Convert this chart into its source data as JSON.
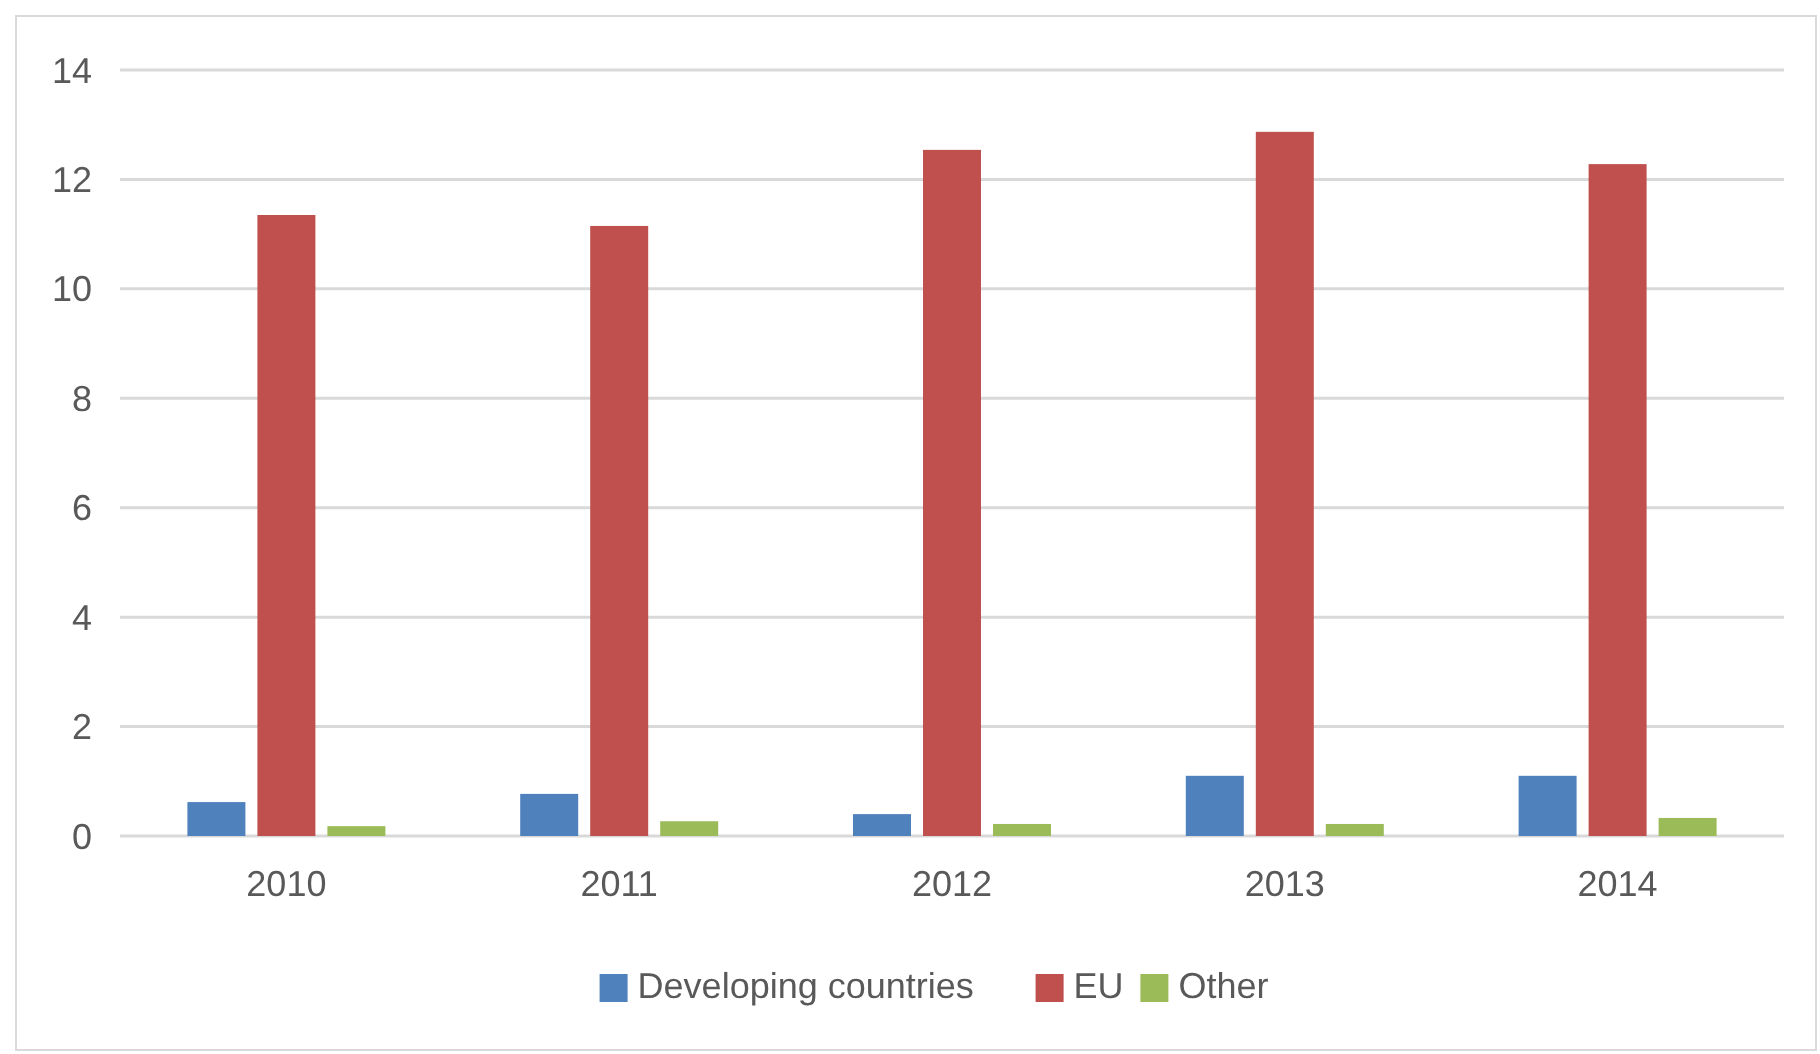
{
  "chart_data": {
    "type": "bar",
    "categories": [
      "2010",
      "2011",
      "2012",
      "2013",
      "2014"
    ],
    "series": [
      {
        "name": "Developing countries",
        "color": "#4f81bd",
        "values": [
          0.62,
          0.77,
          0.4,
          1.1,
          1.1
        ]
      },
      {
        "name": "EU",
        "color": "#c0504d",
        "values": [
          11.35,
          11.15,
          12.54,
          12.87,
          12.28
        ]
      },
      {
        "name": "Other",
        "color": "#9bbb59",
        "values": [
          0.18,
          0.27,
          0.22,
          0.22,
          0.33
        ]
      }
    ],
    "ylim": [
      0,
      14
    ],
    "yticks": [
      0,
      2,
      4,
      6,
      8,
      10,
      12,
      14
    ],
    "grid": "y",
    "legend": "bottom"
  }
}
